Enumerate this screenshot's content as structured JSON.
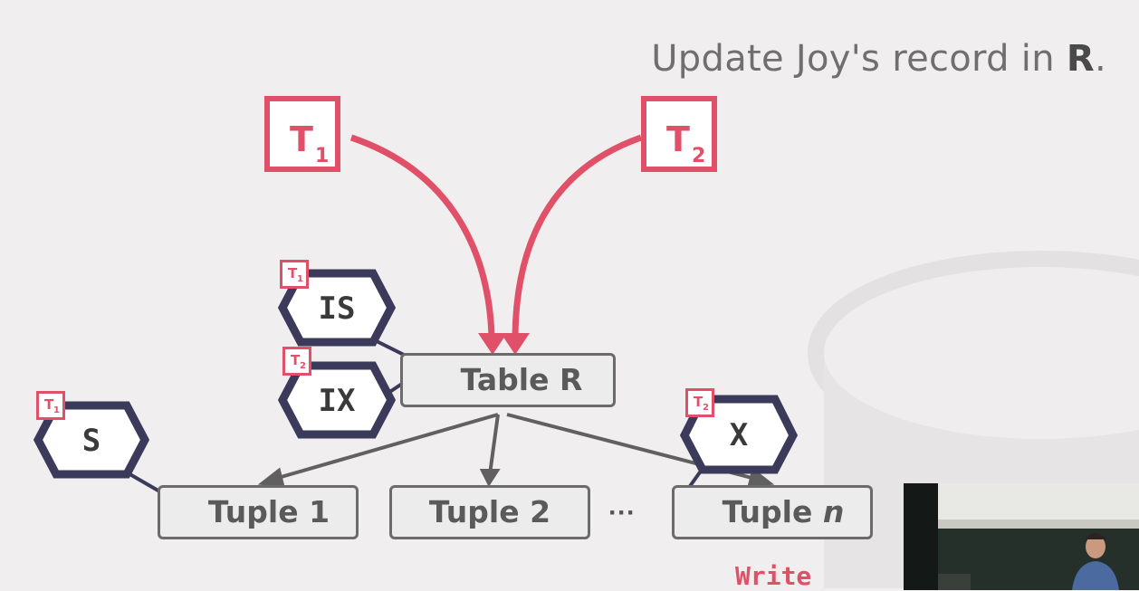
{
  "title": {
    "text": "Update Joy's record in ",
    "bold": "R",
    "end": "."
  },
  "transactions": [
    {
      "name": "T",
      "sub": "1"
    },
    {
      "name": "T",
      "sub": "2"
    }
  ],
  "nodes": {
    "table": "Table R",
    "tuple1": "Tuple 1",
    "tuple2": "Tuple 2",
    "tuplen_prefix": "Tuple ",
    "tuplen_italic": "n",
    "ellipsis": "···"
  },
  "locks": {
    "is": {
      "mode": "IS",
      "owner": "T",
      "owner_sub": "1"
    },
    "ix": {
      "mode": "IX",
      "owner": "T",
      "owner_sub": "2"
    },
    "s": {
      "mode": "S",
      "owner": "T",
      "owner_sub": "1"
    },
    "x": {
      "mode": "X",
      "owner": "T",
      "owner_sub": "2"
    }
  },
  "operation": "Write",
  "colors": {
    "accent": "#e05068",
    "lock_outline": "#3b3a5a",
    "node_border": "#6b6b6b"
  },
  "icons": [
    "padlock-icon",
    "hexagon-lock-badge"
  ]
}
